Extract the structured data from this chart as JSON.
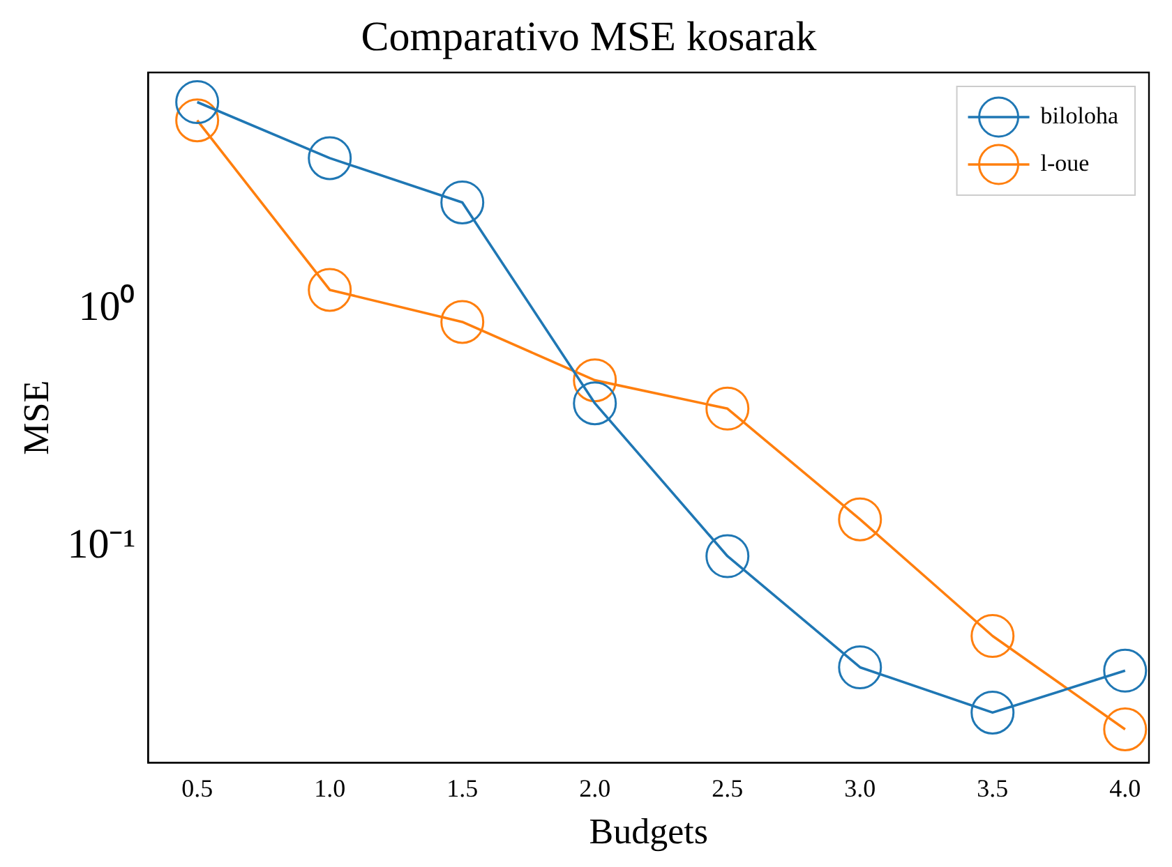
{
  "chart_data": {
    "type": "line",
    "title": "Comparativo MSE kosarak",
    "xlabel": "Budgets",
    "ylabel": "MSE",
    "x": [
      0.5,
      1.0,
      1.5,
      2.0,
      2.5,
      3.0,
      3.5,
      4.0
    ],
    "series": [
      {
        "name": "biloloha",
        "color": "#1f77b4",
        "values": [
          7.4,
          4.3,
          2.8,
          0.4,
          0.091,
          0.031,
          0.02,
          0.03
        ]
      },
      {
        "name": "l-oue",
        "color": "#ff7f0e",
        "values": [
          6.2,
          1.2,
          0.88,
          0.5,
          0.38,
          0.13,
          0.042,
          0.017
        ]
      }
    ],
    "log": "y",
    "xlim": [
      0.315,
      4.09
    ],
    "ylim": [
      0.0123,
      9.86
    ],
    "xticks": [
      0.5,
      {
        "value": 1,
        "label": "1.0"
      },
      1.5,
      {
        "value": 2,
        "label": "2.0"
      },
      2.5,
      {
        "value": 3,
        "label": "3.0"
      },
      3.5,
      {
        "value": 4,
        "label": "4.0"
      }
    ],
    "yticks": [
      {
        "value": 1,
        "label": "10⁰"
      },
      {
        "value": 0.1,
        "label": "10⁻¹"
      }
    ],
    "grid": false,
    "legend": "top right",
    "marker": "circle",
    "line_style": "solid"
  }
}
